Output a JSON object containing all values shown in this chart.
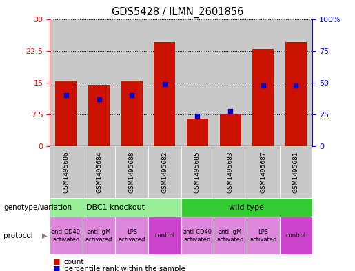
{
  "title": "GDS5428 / ILMN_2601856",
  "samples": [
    "GSM1495686",
    "GSM1495684",
    "GSM1495688",
    "GSM1495682",
    "GSM1495685",
    "GSM1495683",
    "GSM1495687",
    "GSM1495681"
  ],
  "counts": [
    15.5,
    14.5,
    15.5,
    24.5,
    6.5,
    7.5,
    23.0,
    24.5
  ],
  "percentile_ranks": [
    40,
    37,
    40,
    49,
    24,
    28,
    48,
    48
  ],
  "ylim_left": [
    0,
    30
  ],
  "ylim_right": [
    0,
    100
  ],
  "yticks_left": [
    0,
    7.5,
    15,
    22.5,
    30
  ],
  "yticks_right": [
    0,
    25,
    50,
    75,
    100
  ],
  "bar_color": "#cc1100",
  "dot_color": "#0000cc",
  "bg_color": "#c8c8c8",
  "genotype_groups": [
    {
      "label": "DBC1 knockout",
      "start": 0,
      "end": 4,
      "color": "#99ee99"
    },
    {
      "label": "wild type",
      "start": 4,
      "end": 8,
      "color": "#33cc33"
    }
  ],
  "protocol_groups": [
    {
      "label": "anti-CD40\nactivated",
      "start": 0,
      "end": 1,
      "color": "#dd88dd"
    },
    {
      "label": "anti-IgM\nactivated",
      "start": 1,
      "end": 2,
      "color": "#dd88dd"
    },
    {
      "label": "LPS\nactivated",
      "start": 2,
      "end": 3,
      "color": "#dd88dd"
    },
    {
      "label": "control",
      "start": 3,
      "end": 4,
      "color": "#cc44cc"
    },
    {
      "label": "anti-CD40\nactivated",
      "start": 4,
      "end": 5,
      "color": "#dd88dd"
    },
    {
      "label": "anti-IgM\nactivated",
      "start": 5,
      "end": 6,
      "color": "#dd88dd"
    },
    {
      "label": "LPS\nactivated",
      "start": 6,
      "end": 7,
      "color": "#dd88dd"
    },
    {
      "label": "control",
      "start": 7,
      "end": 8,
      "color": "#cc44cc"
    }
  ],
  "genotype_label": "genotype/variation",
  "protocol_label": "protocol",
  "legend_count": "count",
  "legend_percentile": "percentile rank within the sample",
  "figsize": [
    5.15,
    3.93
  ],
  "dpi": 100
}
